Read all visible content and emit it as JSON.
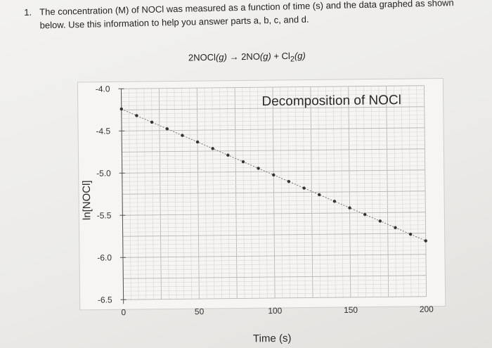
{
  "question": {
    "number": "1.",
    "line1": "The concentration (M) of NOCl was measured as a function of time (s) and the data graphed as shown",
    "line2": "below.  Use this information to help you answer parts a, b, c, and d."
  },
  "equation": {
    "reactant": "2NOCl",
    "reactant_state": "(g)",
    "arrow": "→",
    "product1": "2NO",
    "product1_state": "(g)",
    "plus": "+",
    "product2_base": "Cl",
    "product2_sub": "2",
    "product2_state": "(g)"
  },
  "chart_data": {
    "type": "scatter",
    "title": "Decomposition of NOCl",
    "xlabel": "Time (s)",
    "ylabel": "ln[NOCl]",
    "xlim": [
      0,
      200
    ],
    "ylim": [
      -6.5,
      -4.0
    ],
    "xticks": [
      0,
      50,
      100,
      150,
      200
    ],
    "yticks": [
      -4.0,
      -4.5,
      -5.0,
      -5.5,
      -6.0,
      -6.5
    ],
    "ytick_labels": [
      "-4.0",
      "-4.5",
      "-5.0",
      "-5.5",
      "-6.0",
      "-6.5"
    ],
    "grid": true,
    "series": [
      {
        "x": [
          0,
          10,
          20,
          30,
          40,
          50,
          60,
          70,
          80,
          90,
          100,
          110,
          120,
          130,
          140,
          150,
          160,
          170,
          180,
          190,
          200
        ],
        "y": [
          -4.24,
          -4.32,
          -4.4,
          -4.48,
          -4.56,
          -4.64,
          -4.72,
          -4.8,
          -4.88,
          -4.96,
          -5.04,
          -5.12,
          -5.2,
          -5.28,
          -5.36,
          -5.44,
          -5.52,
          -5.6,
          -5.68,
          -5.76,
          -5.84
        ],
        "color": "#333333"
      }
    ]
  }
}
